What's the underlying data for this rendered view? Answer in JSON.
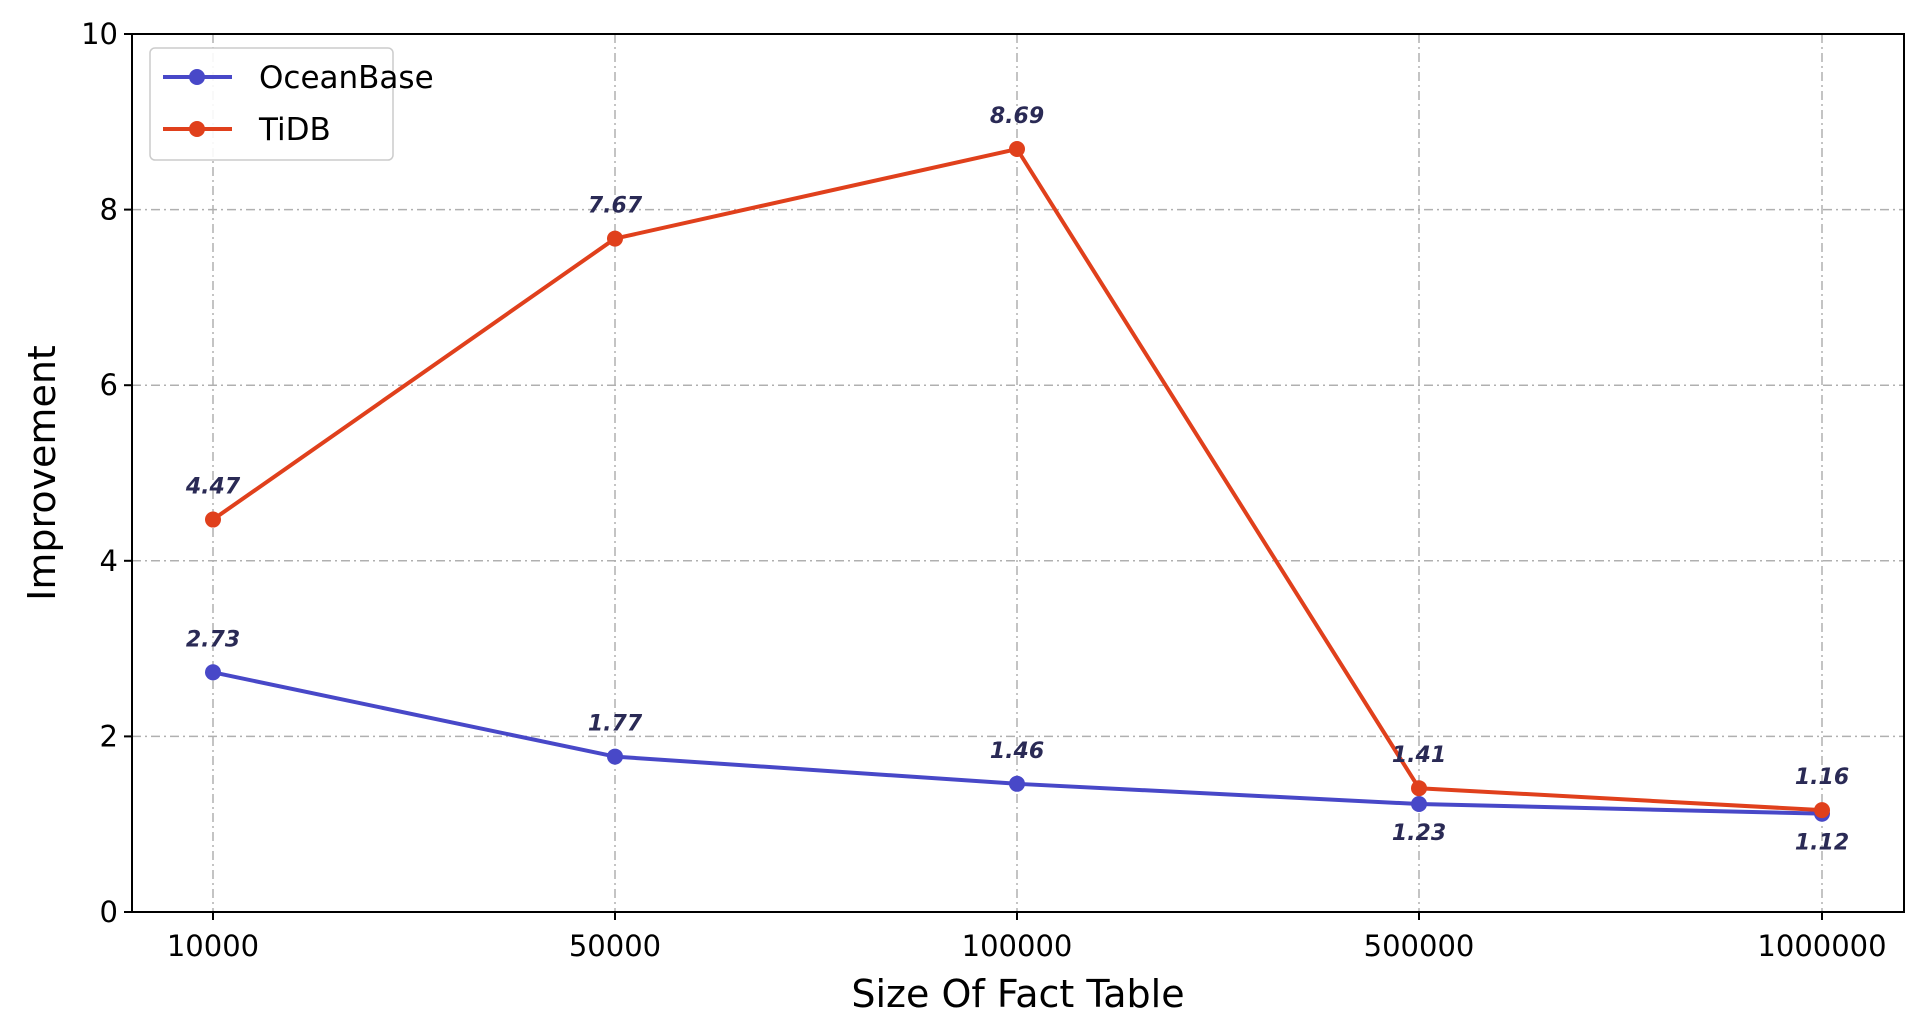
{
  "chart_data": {
    "type": "line",
    "categories": [
      "10000",
      "50000",
      "100000",
      "500000",
      "1000000"
    ],
    "series": [
      {
        "name": "OceanBase",
        "values": [
          2.73,
          1.77,
          1.46,
          1.23,
          1.12
        ],
        "color": "#4848c8"
      },
      {
        "name": "TiDB",
        "values": [
          4.47,
          7.67,
          8.69,
          1.41,
          1.16
        ],
        "color": "#e0401c"
      }
    ],
    "title": "",
    "xlabel": "Size Of Fact Table",
    "ylabel": "Improvement",
    "ylim": [
      0,
      10
    ],
    "yticks": [
      "0",
      "2",
      "4",
      "6",
      "8",
      "10"
    ],
    "grid": true,
    "legend_position": "top-left"
  }
}
